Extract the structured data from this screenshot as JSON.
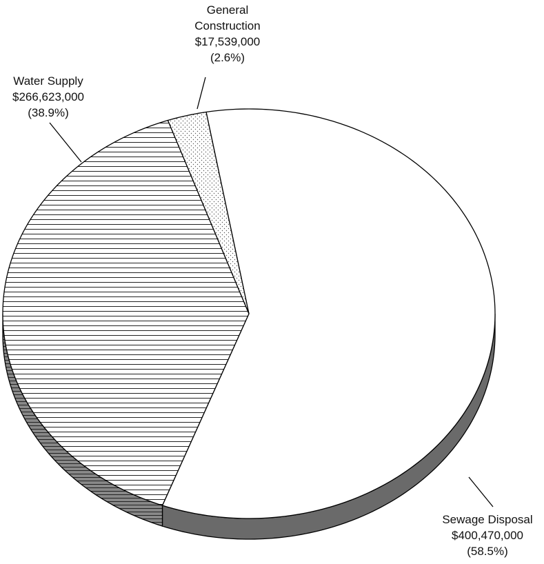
{
  "chart_data": {
    "type": "pie",
    "categories": [
      "Sewage Disposal",
      "Water Supply",
      "General Construction"
    ],
    "values": [
      400470000,
      266623000,
      17539000
    ],
    "value_labels": [
      "$400,470,000",
      "$266,623,000",
      "$17,539,000"
    ],
    "percent_labels": [
      "(58.5%)",
      "(38.9%)",
      "(2.6%)"
    ]
  }
}
